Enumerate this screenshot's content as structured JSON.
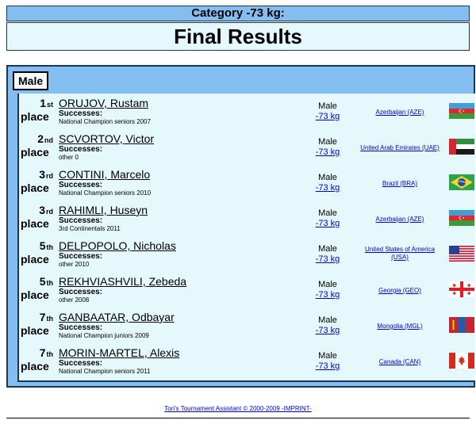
{
  "header": {
    "category": "Category -73 kg:",
    "title": "Final Results"
  },
  "group": {
    "label": "Male"
  },
  "results": [
    {
      "rank": "1",
      "suffix": "st",
      "place": "place",
      "name": "ORUJOV, Rustam",
      "successes_label": "Successes:",
      "successes": "National Champion seniors 2007",
      "gender": "Male",
      "weight": "-73 kg",
      "country": "Azerbaijan (AZE)",
      "flag": "azerbaijan-flag-icon"
    },
    {
      "rank": "2",
      "suffix": "nd",
      "place": "place",
      "name": "SCVORTOV, Victor",
      "successes_label": "Successes:",
      "successes": "other 0",
      "gender": "Male",
      "weight": "-73 kg",
      "country": "United Arab Emirates (UAE)",
      "flag": "uae-flag-icon"
    },
    {
      "rank": "3",
      "suffix": "rd",
      "place": "place",
      "name": "CONTINI, Marcelo",
      "successes_label": "Successes:",
      "successes": "National Champion seniors 2010",
      "gender": "Male",
      "weight": "-73 kg",
      "country": "Brazil (BRA)",
      "flag": "brazil-flag-icon"
    },
    {
      "rank": "3",
      "suffix": "rd",
      "place": "place",
      "name": "RAHIMLI, Huseyn",
      "successes_label": "Successes:",
      "successes": "3rd Continentals 2011",
      "gender": "Male",
      "weight": "-73 kg",
      "country": "Azerbaijan (AZE)",
      "flag": "azerbaijan-flag-icon"
    },
    {
      "rank": "5",
      "suffix": "th",
      "place": "place",
      "name": "DELPOPOLO, Nicholas",
      "successes_label": "Successes:",
      "successes": "other 2010",
      "gender": "Male",
      "weight": "-73 kg",
      "country": "United States of America (USA)",
      "flag": "usa-flag-icon"
    },
    {
      "rank": "5",
      "suffix": "th",
      "place": "place",
      "name": "REKHVIASHVILI, Zebeda",
      "successes_label": "Successes:",
      "successes": "other 2008",
      "gender": "Male",
      "weight": "-73 kg",
      "country": "Georgia (GEO)",
      "flag": "georgia-flag-icon"
    },
    {
      "rank": "7",
      "suffix": "th",
      "place": "place",
      "name": "GANBAATAR, Odbayar",
      "successes_label": "Successes:",
      "successes": "National Champion juniors 2009",
      "gender": "Male",
      "weight": "-73 kg",
      "country": "Mongolia (MGL)",
      "flag": "mongolia-flag-icon"
    },
    {
      "rank": "7",
      "suffix": "th",
      "place": "place",
      "name": "MORIN-MARTEL, Alexis",
      "successes_label": "Successes:",
      "successes": "National Champion seniors 2011",
      "gender": "Male",
      "weight": "-73 kg",
      "country": "Canada (CAN)",
      "flag": "canada-flag-icon"
    }
  ],
  "footer": {
    "text": "Tori's Tournament Assistant © 2000-2009 -IMPRINT-"
  },
  "colors": {
    "header_blue": "#84bdf0",
    "row_background": "#e5f8fb",
    "border": "#1a3656"
  }
}
